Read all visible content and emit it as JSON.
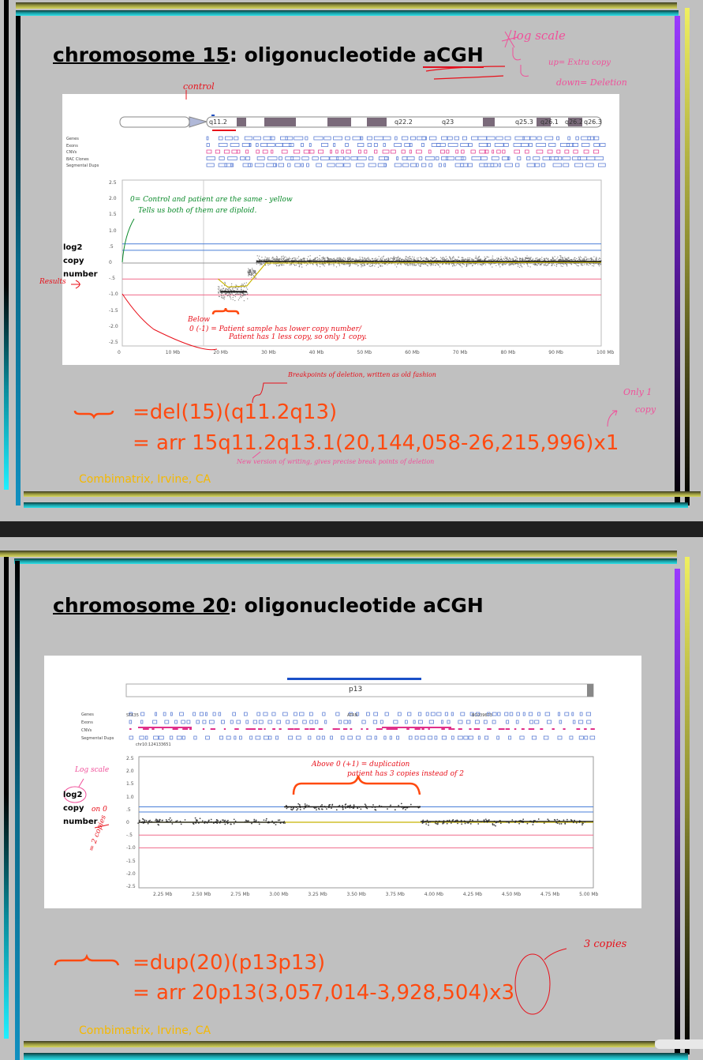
{
  "slides": [
    {
      "title_underlined": "chromosome 15",
      "title_rest": ": oligonucleotide ",
      "title_end": "aCGH",
      "ylabel": [
        "log2",
        "copy",
        "number"
      ],
      "ideogram_bands": [
        "q11.2",
        "q22.2",
        "q23",
        "q25.3",
        "q26.1",
        "q26.2",
        "q26.3"
      ],
      "tracks": [
        "Genes",
        "Exons",
        "CNVs",
        "BAC Clones",
        "Segmental Dups"
      ],
      "yticks": [
        "2.5",
        "2.0",
        "1.5",
        "1.0",
        ".5",
        "0",
        "-.5",
        "-1.0",
        "-1.5",
        "-2.0",
        "-2.5"
      ],
      "xticks": [
        "0",
        "10 Mb",
        "20 Mb",
        "30 Mb",
        "40 Mb",
        "50 Mb",
        "60 Mb",
        "70 Mb",
        "80 Mb",
        "90 Mb",
        "100 Mb"
      ],
      "formula1": "=del(15)(q11.2q13)",
      "formula2": "= arr 15q11.2q13.1(20,144,058-26,215,996)x1",
      "credit": "Combimatrix, Irvine, CA",
      "notes": {
        "log_scale": "log scale",
        "up": "up= Extra copy",
        "down": "down= Deletion",
        "control": "control",
        "zero": "0= Control and patient are the same - yellow",
        "zero2": "Tells us both of them are diploid.",
        "results": "Results",
        "below1": "Below",
        "below2": "0 (-1) = Patient sample has lower copy number/",
        "below3": "Patient has 1 less copy, so only 1 copy.",
        "breakpoints": "Breakpoints of deletion, written as old fashion",
        "new_version": "New version of writing, gives precise break points of deletion",
        "only1": "Only 1",
        "copy": "copy"
      }
    },
    {
      "title_underlined": "chromosome 20",
      "title_rest": ": oligonucleotide aCGH",
      "ylabel": [
        "log2",
        "copy",
        "number"
      ],
      "band": "p13",
      "tracks": [
        "Genes",
        "Exons",
        "CNVs",
        "Segmental Dups"
      ],
      "gene_labels": [
        "STK35",
        "ATRN",
        "BC039673",
        "chr10:124133651"
      ],
      "yticks": [
        "2.5",
        "2.0",
        "1.5",
        "1.0",
        ".5",
        "0",
        "-.5",
        "-1.0",
        "-1.5",
        "-2.0",
        "-2.5"
      ],
      "xticks": [
        "2.25 Mb",
        "2.50 Mb",
        "2.75 Mb",
        "3.00 Mb",
        "3.25 Mb",
        "3.50 Mb",
        "3.75 Mb",
        "4.00 Mb",
        "4.25 Mb",
        "4.50 Mb",
        "4.75 Mb",
        "5.00 Mb"
      ],
      "formula1": "=dup(20)(p13p13)",
      "formula2": "= arr 20p13(3,057,014-3,928,504)x3",
      "credit": "Combimatrix, Irvine, CA",
      "notes": {
        "log_scale": "Log scale",
        "on0": "on 0",
        "two_copies": "= 2 copies",
        "above1": "Above 0 (+1) = duplication",
        "above2": "patient has 3 copies instead of 2",
        "three_copies": "3 copies"
      }
    }
  ],
  "colors": {
    "formula": "#ff4a10",
    "credit": "#f5b800",
    "note_pink": "#f0509a",
    "note_red": "#e8101a",
    "note_green": "#0a8a2a",
    "blue_line": "#4a7fd8",
    "red_line": "#f06a8a",
    "yellow_line": "#c8b400"
  }
}
